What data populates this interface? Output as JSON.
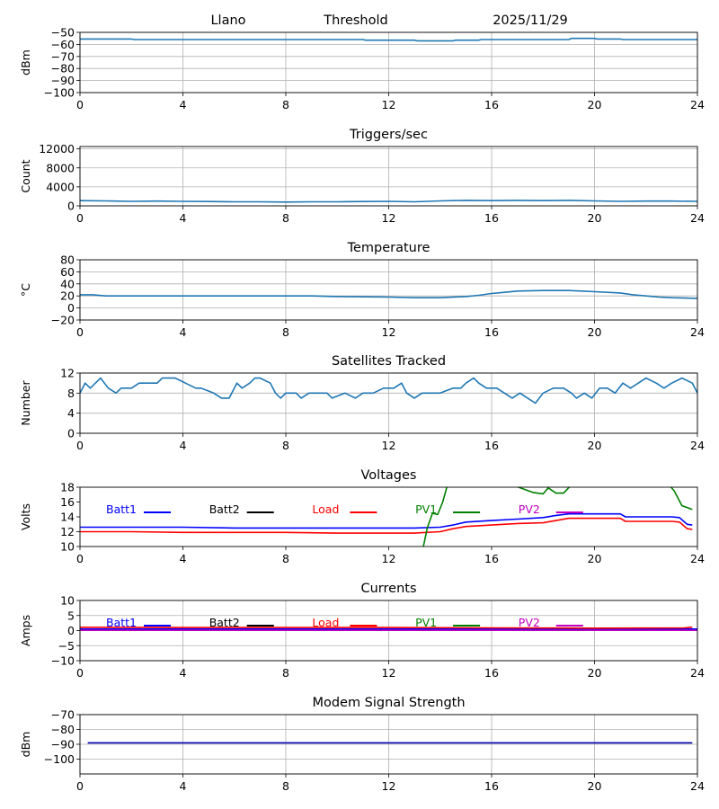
{
  "header": {
    "station": "Llano",
    "mode": "Threshold",
    "date": "2025/11/29"
  },
  "colors": {
    "line": "#1f77b4",
    "batt1": "#0000ff",
    "batt2": "#000000",
    "load": "#ff0000",
    "pv1": "#008000",
    "pv2": "#bf00bf",
    "grid": "#b0b0b0",
    "modem": "#0000aa"
  },
  "chart_data": [
    {
      "type": "line",
      "title": "",
      "ylabel": "dBm",
      "xlim": [
        0,
        24
      ],
      "ylim": [
        -100,
        -50
      ],
      "xticks": [
        0,
        4,
        8,
        12,
        16,
        20,
        24
      ],
      "yticks": [
        -100,
        -90,
        -80,
        -70,
        -60,
        -50
      ],
      "grid": true,
      "series": [
        {
          "color_key": "line",
          "x": [
            0,
            2,
            2.1,
            11,
            11.1,
            13,
            13.1,
            14.5,
            14.6,
            15.5,
            15.6,
            19,
            19.1,
            20,
            20.1,
            21,
            21.1,
            24
          ],
          "y": [
            -55.5,
            -55.5,
            -56,
            -56,
            -56.5,
            -56.5,
            -57,
            -57,
            -56.5,
            -56.5,
            -56,
            -56,
            -55,
            -55,
            -55.5,
            -55.5,
            -56,
            -56
          ]
        }
      ]
    },
    {
      "type": "line",
      "title": "Triggers/sec",
      "ylabel": "Count",
      "xlim": [
        0,
        24
      ],
      "ylim": [
        0,
        12500
      ],
      "xticks": [
        0,
        4,
        8,
        12,
        16,
        20,
        24
      ],
      "yticks": [
        0,
        4000,
        8000,
        12000
      ],
      "grid": true,
      "series": [
        {
          "color_key": "line",
          "x": [
            0,
            1,
            2,
            3,
            4,
            5,
            6,
            7,
            8,
            9,
            10,
            11,
            12,
            13,
            14,
            15,
            16,
            17,
            18,
            19,
            20,
            21,
            22,
            23,
            24
          ],
          "y": [
            1100,
            1050,
            950,
            1000,
            950,
            900,
            850,
            850,
            800,
            850,
            850,
            900,
            950,
            850,
            1050,
            1150,
            1100,
            1150,
            1100,
            1150,
            1050,
            950,
            1000,
            1000,
            950
          ]
        }
      ]
    },
    {
      "type": "line",
      "title": "Temperature",
      "ylabel": "°C",
      "xlim": [
        0,
        24
      ],
      "ylim": [
        -20,
        80
      ],
      "xticks": [
        0,
        4,
        8,
        12,
        16,
        20,
        24
      ],
      "yticks": [
        -20,
        0,
        20,
        40,
        60,
        80
      ],
      "grid": true,
      "series": [
        {
          "color_key": "line",
          "x": [
            0,
            0.5,
            1,
            3,
            6,
            9,
            10,
            12,
            13,
            14,
            15,
            15.5,
            16,
            16.5,
            17,
            18,
            19,
            19.5,
            20,
            21,
            21.5,
            22,
            22.5,
            23,
            24
          ],
          "y": [
            22,
            22,
            20,
            20,
            20,
            20,
            19,
            18,
            17,
            17,
            19,
            21,
            24,
            26,
            28,
            29,
            29,
            28,
            27,
            25,
            22,
            20,
            18,
            17,
            16
          ]
        }
      ]
    },
    {
      "type": "line",
      "title": "Satellites Tracked",
      "ylabel": "Number",
      "xlim": [
        0,
        24
      ],
      "ylim": [
        0,
        12
      ],
      "xticks": [
        0,
        4,
        8,
        12,
        16,
        20,
        24
      ],
      "yticks": [
        0,
        4,
        8,
        12
      ],
      "grid": true,
      "series": [
        {
          "color_key": "line",
          "x": [
            0,
            0.2,
            0.4,
            0.8,
            1.1,
            1.4,
            1.6,
            2,
            2.3,
            2.6,
            3,
            3.2,
            3.7,
            4.1,
            4.5,
            4.7,
            5.2,
            5.5,
            5.8,
            6.1,
            6.3,
            6.6,
            6.8,
            7,
            7.4,
            7.6,
            7.8,
            8,
            8.4,
            8.6,
            8.9,
            9.3,
            9.6,
            9.8,
            10.3,
            10.7,
            11,
            11.4,
            11.8,
            12.2,
            12.5,
            12.7,
            13,
            13.3,
            13.6,
            14,
            14.5,
            14.8,
            15,
            15.3,
            15.5,
            15.8,
            16.2,
            16.5,
            16.8,
            17.1,
            17.4,
            17.7,
            18,
            18.4,
            18.8,
            19.1,
            19.3,
            19.6,
            19.9,
            20.2,
            20.5,
            20.8,
            21.1,
            21.4,
            21.7,
            22,
            22.4,
            22.7,
            23,
            23.4,
            23.8,
            24
          ],
          "y": [
            8,
            10,
            9,
            11,
            9,
            8,
            9,
            9,
            10,
            10,
            10,
            11,
            11,
            10,
            9,
            9,
            8,
            7,
            7,
            10,
            9,
            10,
            11,
            11,
            10,
            8,
            7,
            8,
            8,
            7,
            8,
            8,
            8,
            7,
            8,
            7,
            8,
            8,
            9,
            9,
            10,
            8,
            7,
            8,
            8,
            8,
            9,
            9,
            10,
            11,
            10,
            9,
            9,
            8,
            7,
            8,
            7,
            6,
            8,
            9,
            9,
            8,
            7,
            8,
            7,
            9,
            9,
            8,
            10,
            9,
            10,
            11,
            10,
            9,
            10,
            11,
            10,
            8
          ]
        }
      ]
    },
    {
      "type": "line",
      "title": "Voltages",
      "ylabel": "Volts",
      "xlim": [
        0,
        24
      ],
      "ylim": [
        10,
        18
      ],
      "xticks": [
        0,
        4,
        8,
        12,
        16,
        20,
        24
      ],
      "yticks": [
        10,
        12,
        14,
        16,
        18
      ],
      "grid": false,
      "legend": [
        "Batt1",
        "Batt2",
        "Load",
        "PV1",
        "PV2"
      ],
      "series": [
        {
          "name": "Batt1",
          "color_key": "batt1",
          "x": [
            0,
            2,
            4,
            6,
            8,
            10,
            12,
            13,
            14,
            14.5,
            15,
            16,
            17,
            18,
            18.5,
            19,
            20,
            21,
            21.2,
            22,
            23,
            23.3,
            23.6,
            23.8
          ],
          "y": [
            12.6,
            12.6,
            12.6,
            12.5,
            12.5,
            12.5,
            12.5,
            12.5,
            12.6,
            12.9,
            13.3,
            13.5,
            13.7,
            13.9,
            14.2,
            14.4,
            14.4,
            14.4,
            14,
            14,
            14,
            13.9,
            13,
            12.9
          ]
        },
        {
          "name": "Load",
          "color_key": "load",
          "x": [
            0,
            2,
            4,
            6,
            8,
            10,
            12,
            13,
            14,
            14.5,
            15,
            16,
            17,
            18,
            18.5,
            19,
            20,
            21,
            21.2,
            22,
            23,
            23.3,
            23.6,
            23.8
          ],
          "y": [
            12.0,
            12.0,
            11.9,
            11.9,
            11.9,
            11.8,
            11.8,
            11.8,
            12.0,
            12.4,
            12.7,
            12.9,
            13.1,
            13.2,
            13.5,
            13.8,
            13.8,
            13.8,
            13.4,
            13.4,
            13.4,
            13.3,
            12.4,
            12.3
          ]
        },
        {
          "name": "PV1",
          "color_key": "pv1",
          "x": [
            13.35,
            13.5,
            13.7,
            13.9,
            14.1,
            14.3
          ],
          "y": [
            10,
            12.5,
            14.5,
            14.3,
            16,
            18.5
          ],
          "extra": [
            {
              "x": [
                16.8,
                17.2,
                17.6,
                18,
                18.2,
                18.5,
                18.8,
                19.1
              ],
              "y": [
                18.3,
                17.8,
                17.3,
                17.1,
                17.9,
                17.2,
                17.2,
                18.3
              ]
            },
            {
              "x": [
                22.9,
                23.1,
                23.4,
                23.8
              ],
              "y": [
                18.3,
                17.5,
                15.5,
                15.0
              ]
            }
          ]
        }
      ]
    },
    {
      "type": "line",
      "title": "Currents",
      "ylabel": "Amps",
      "xlim": [
        0,
        24
      ],
      "ylim": [
        -10,
        10
      ],
      "xticks": [
        0,
        4,
        8,
        12,
        16,
        20,
        24
      ],
      "yticks": [
        -10,
        -5,
        0,
        5,
        10
      ],
      "grid": true,
      "legend": [
        "Batt1",
        "Batt2",
        "Load",
        "PV1",
        "PV2"
      ],
      "series": [
        {
          "name": "Batt1",
          "color_key": "batt1",
          "x": [
            0,
            24
          ],
          "y": [
            0.5,
            0.5
          ]
        },
        {
          "name": "Load",
          "color_key": "load",
          "x": [
            0,
            4,
            8,
            12,
            16,
            20,
            23.5,
            23.8
          ],
          "y": [
            1.1,
            1.0,
            1.0,
            1.0,
            0.9,
            0.8,
            0.9,
            1.1
          ]
        },
        {
          "name": "PV2",
          "color_key": "pv2",
          "x": [
            0,
            24
          ],
          "y": [
            0.1,
            0.1
          ]
        }
      ]
    },
    {
      "type": "line",
      "title": "Modem Signal Strength",
      "ylabel": "dBm",
      "xlim": [
        0,
        24
      ],
      "ylim": [
        -110,
        -70
      ],
      "xticks": [
        0,
        4,
        8,
        12,
        16,
        20,
        24
      ],
      "yticks": [
        -100,
        -90,
        -80,
        -70
      ],
      "grid": true,
      "series": [
        {
          "color_key": "modem",
          "x": [
            0.3,
            23.8
          ],
          "y": [
            -89,
            -89
          ]
        }
      ]
    }
  ]
}
